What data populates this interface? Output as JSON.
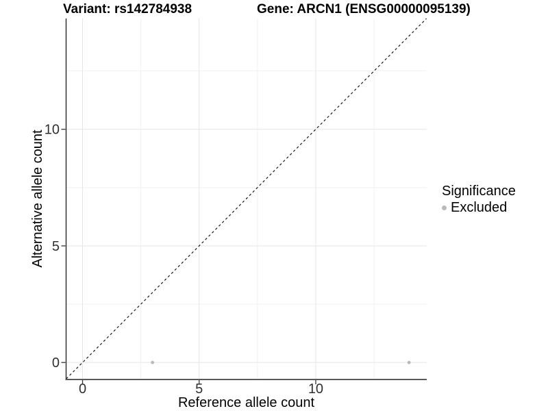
{
  "header": {
    "variant_title": "Variant: rs142784938",
    "gene_title": "Gene: ARCN1 (ENSG00000095139)"
  },
  "chart_data": {
    "type": "scatter",
    "xlabel": "Reference allele count",
    "ylabel": "Alternative allele count",
    "xlim": [
      -0.72,
      14.76
    ],
    "ylim": [
      -0.7,
      14.75
    ],
    "x_ticks": [
      0,
      5,
      10
    ],
    "y_ticks": [
      0,
      5,
      10
    ],
    "x_minor_ticks": [
      2.5,
      7.5,
      12.5
    ],
    "y_minor_ticks": [
      2.5,
      7.5,
      12.5
    ],
    "grid": true,
    "identity_line": {
      "style": "dashed",
      "color": "#1a1a1a",
      "from": [
        -0.7,
        -0.7
      ],
      "to": [
        14.75,
        14.75
      ]
    },
    "series": [
      {
        "name": "Excluded",
        "color": "#b9b9b9",
        "points": [
          {
            "x": 3,
            "y": 0
          },
          {
            "x": 14,
            "y": 0
          }
        ]
      }
    ],
    "legend": {
      "position": "right",
      "title": "Significance",
      "items": [
        {
          "label": "Excluded",
          "color": "#b9b9b9"
        }
      ]
    },
    "colors": {
      "major_grid": "#e5e5e5",
      "minor_grid": "#f1f1f1",
      "axis_line": "#404040",
      "tick_mark": "#333333",
      "tick_label": "#303030"
    }
  }
}
